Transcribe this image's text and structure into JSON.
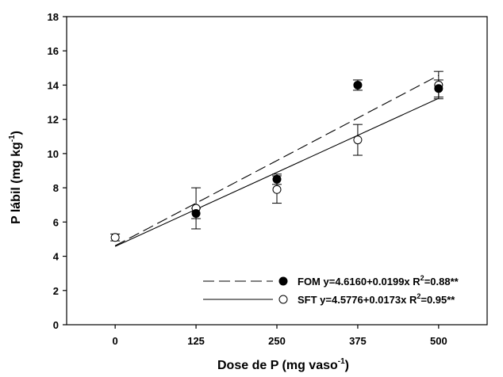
{
  "chart_data": {
    "type": "scatter",
    "xlabel": "Dose de P (mg vaso",
    "xlabel_sup": "-1",
    "xlabel_end": ")",
    "ylabel": "P lábil (mg kg",
    "ylabel_sup": "-1",
    "ylabel_end": ")",
    "x_ticks": [
      0,
      125,
      250,
      375,
      500
    ],
    "y_ticks": [
      0,
      2,
      4,
      6,
      8,
      10,
      12,
      14,
      16,
      18
    ],
    "xlim": [
      -75,
      575
    ],
    "ylim": [
      0,
      18
    ],
    "grid": false,
    "legend_position": "bottom-right",
    "series": [
      {
        "name": "FOM",
        "marker": "filled-circle",
        "line_style": "dashed",
        "equation": "y=4.6160+0.0199x",
        "r2_label": "R",
        "r2_sup": "2",
        "r2_value": "=0.88**",
        "intercept": 4.616,
        "slope": 0.0199,
        "points": [
          {
            "x": 125,
            "y": 6.5,
            "err": 0.3
          },
          {
            "x": 250,
            "y": 8.5,
            "err": 0.3
          },
          {
            "x": 375,
            "y": 14.0,
            "err": 0.3
          },
          {
            "x": 500,
            "y": 13.8,
            "err": 0.5
          }
        ]
      },
      {
        "name": "SFT",
        "marker": "open-circle",
        "line_style": "solid",
        "equation": "y=4.5776+0.0173x",
        "r2_label": "R",
        "r2_sup": "2",
        "r2_value": "=0.95**",
        "intercept": 4.5776,
        "slope": 0.0173,
        "points": [
          {
            "x": 0,
            "y": 5.1,
            "err": 0.2
          },
          {
            "x": 125,
            "y": 6.8,
            "err": 1.2
          },
          {
            "x": 250,
            "y": 7.9,
            "err": 0.8
          },
          {
            "x": 375,
            "y": 10.8,
            "err": 0.9
          },
          {
            "x": 500,
            "y": 14.0,
            "err": 0.8
          }
        ]
      }
    ]
  }
}
